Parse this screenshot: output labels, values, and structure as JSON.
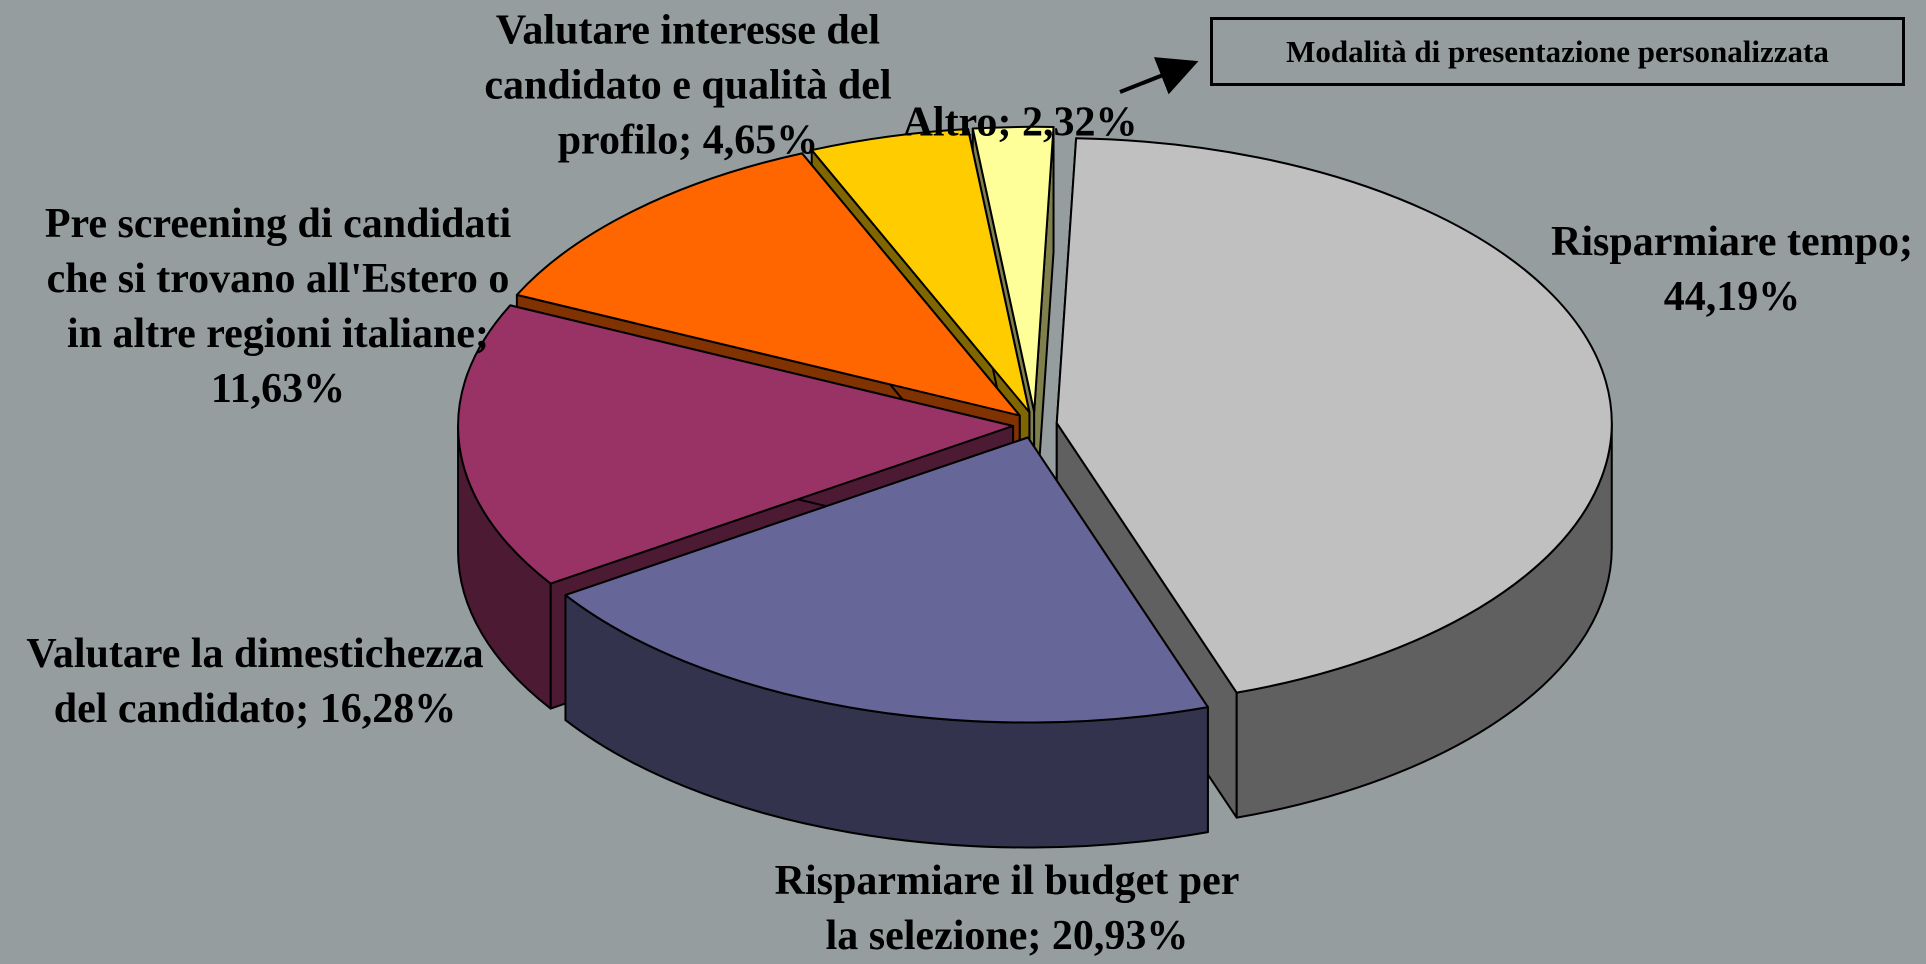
{
  "chart_data": {
    "type": "pie3d",
    "categories": [
      "Risparmiare tempo",
      "Risparmiare il budget per la selezione",
      "Valutare la dimestichezza del candidato",
      "Pre screening di candidati che si trovano all'Estero o in altre regioni italiane",
      "Valutare interesse del candidato e qualità del profilo",
      "Altro"
    ],
    "values": [
      44.19,
      20.93,
      16.28,
      11.63,
      4.65,
      2.32
    ],
    "value_labels": [
      "44,19%",
      "20,93%",
      "16,28%",
      "11,63%",
      "4,65%",
      "2,32%"
    ],
    "label_separator": "; ",
    "colors": [
      "#c0c0c0",
      "#666699",
      "#993366",
      "#ff6600",
      "#ffcc00",
      "#ffff99"
    ],
    "annotation": "Modalità di presentazione personalizzata"
  }
}
